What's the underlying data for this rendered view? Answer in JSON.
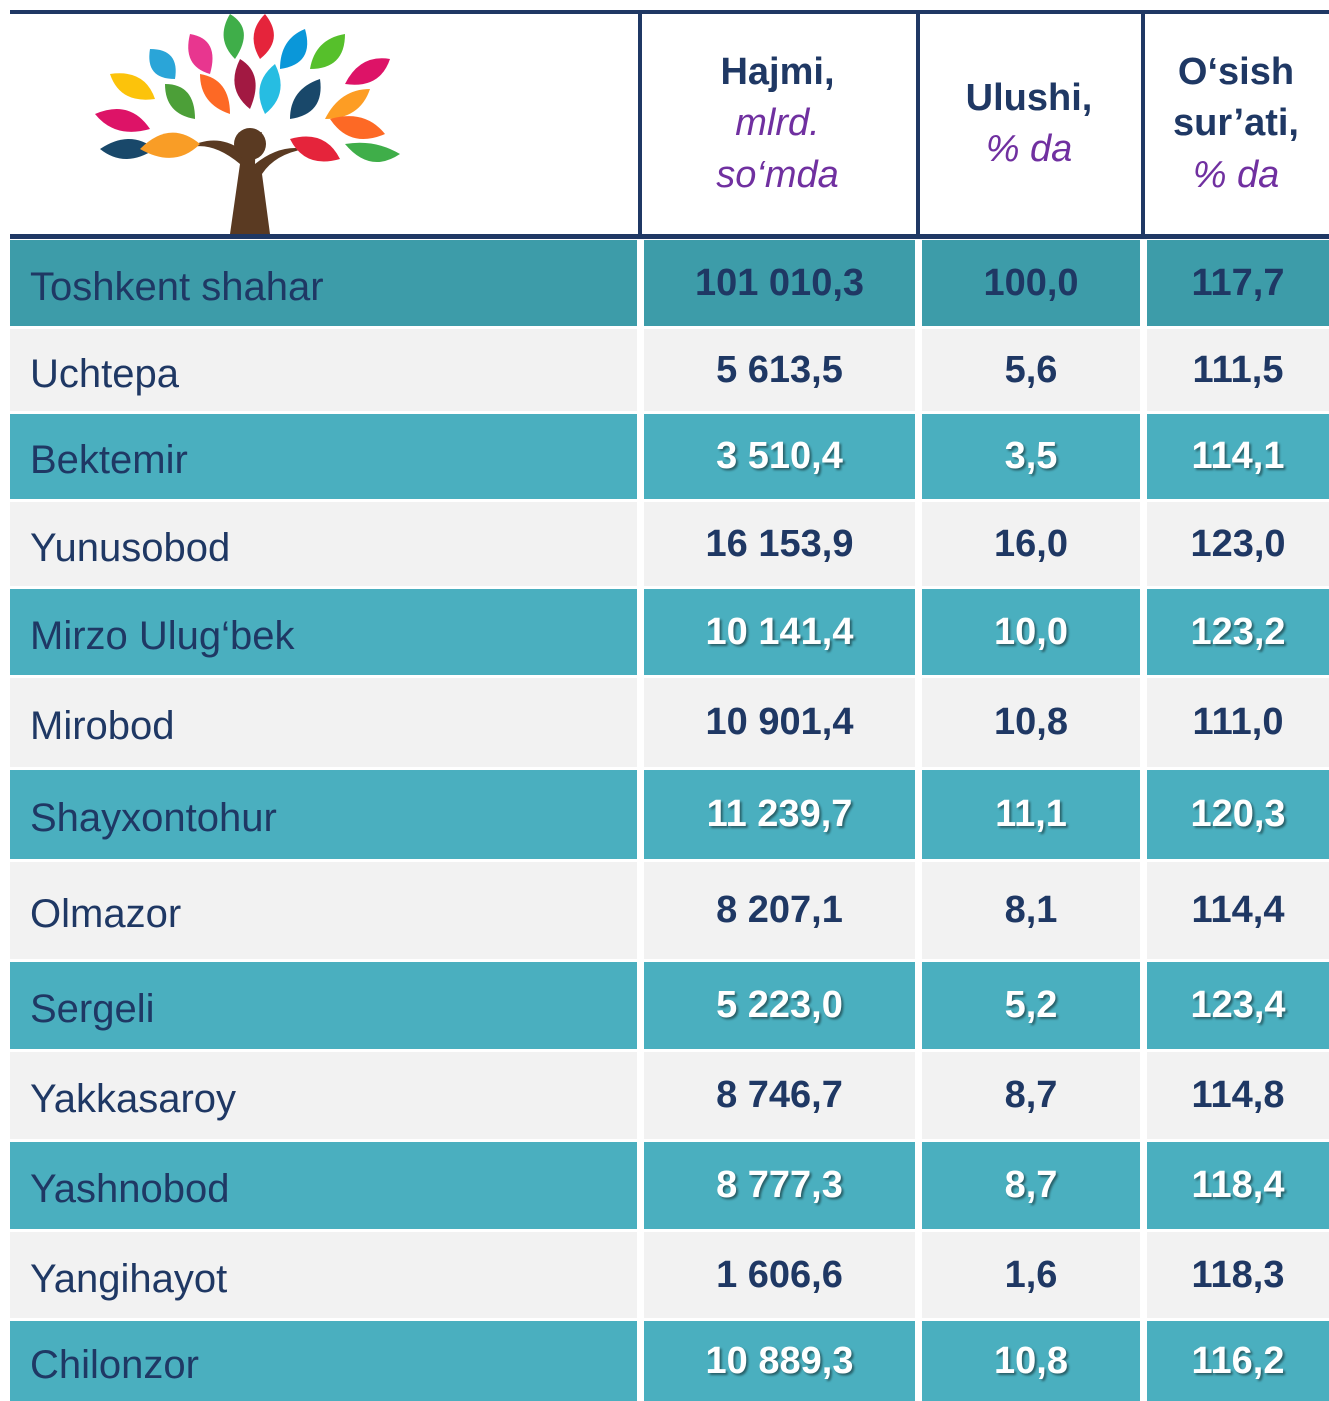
{
  "table": {
    "columns": [
      {
        "title": [
          "Hajmi,"
        ],
        "unit": [
          "mlrd.",
          "so‘mda"
        ]
      },
      {
        "title": [
          "Ulushi,"
        ],
        "unit": [
          "% da"
        ]
      },
      {
        "title": [
          "O‘sish",
          "sur’ati,"
        ],
        "unit": [
          "% da"
        ]
      }
    ],
    "rows": [
      [
        "Toshkent shahar",
        "101 010,3",
        "100,0",
        "117,7"
      ],
      [
        "Uchtepa",
        "5 613,5",
        "5,6",
        "111,5"
      ],
      [
        "Bektemir",
        "3 510,4",
        "3,5",
        "114,1"
      ],
      [
        "Yunusobod",
        "16 153,9",
        "16,0",
        "123,0"
      ],
      [
        "Mirzo Ulug‘bek",
        "10 141,4",
        "10,0",
        "123,2"
      ],
      [
        "Mirobod",
        "10 901,4",
        "10,8",
        "111,0"
      ],
      [
        "Shayxontohur",
        "11 239,7",
        "11,1",
        "120,3"
      ],
      [
        "Olmazor",
        "8 207,1",
        "8,1",
        "114,4"
      ],
      [
        "Sergeli",
        "5 223,0",
        "5,2",
        "123,4"
      ],
      [
        "Yakkasaroy",
        "8 746,7",
        "8,7",
        "114,8"
      ],
      [
        "Yashnobod",
        "8 777,3",
        "8,7",
        "118,4"
      ],
      [
        "Yangihayot",
        "1 606,6",
        "1,6",
        "118,3"
      ],
      [
        "Chilonzor",
        "10 889,3",
        "10,8",
        "116,2"
      ]
    ]
  }
}
